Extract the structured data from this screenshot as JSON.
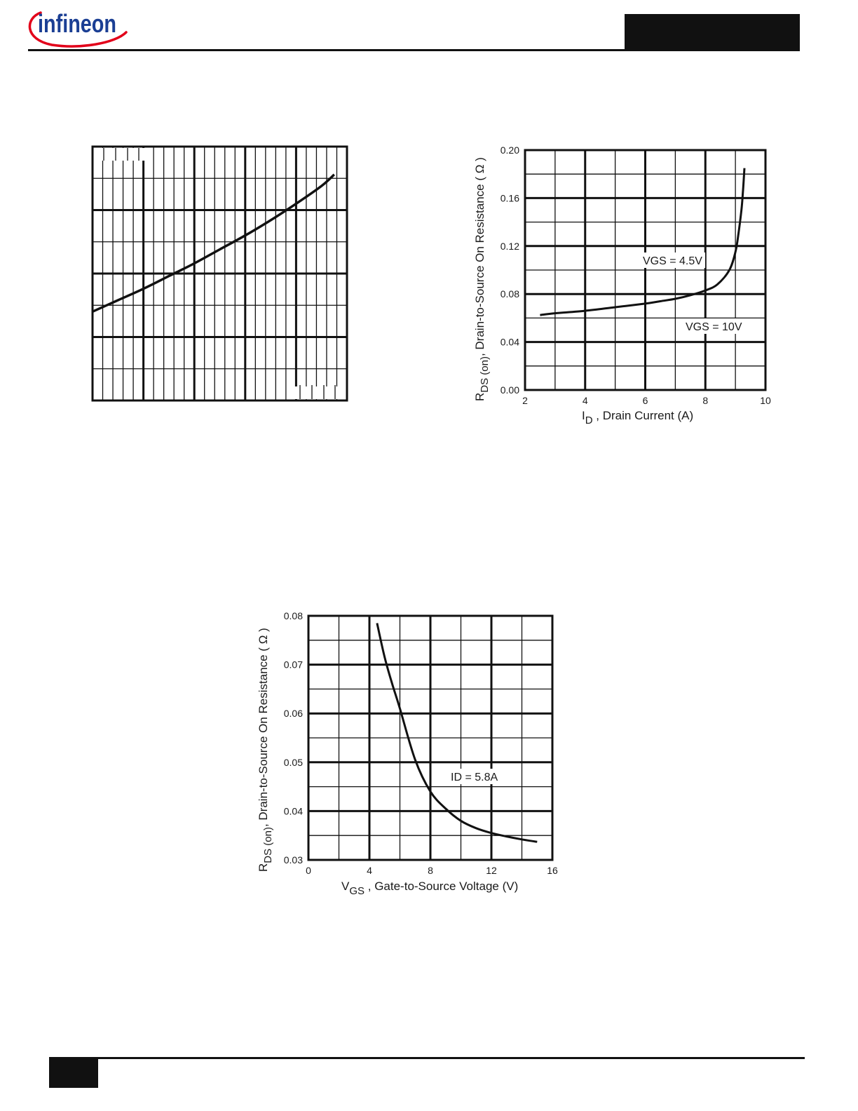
{
  "header": {
    "logo_text": "infineon",
    "brand_color": "#1b3f94",
    "swoosh_color": "#e2001a"
  },
  "chart_data": [
    {
      "type": "line",
      "title": "",
      "xlabel": "",
      "ylabel": "",
      "xlim": [
        0,
        100
      ],
      "ylim": [
        0,
        100
      ],
      "grid": true,
      "series": [
        {
          "x": [
            0,
            10,
            20,
            30,
            40,
            50,
            60,
            70,
            80,
            90,
            95
          ],
          "y": [
            35,
            39.5,
            44,
            49,
            54,
            59.5,
            65,
            71,
            77.5,
            84.5,
            89
          ]
        }
      ]
    },
    {
      "type": "line",
      "title": "",
      "ylabel_main": "R",
      "ylabel_sub": "DS (on)",
      "ylabel_rest": ", Drain-to-Source On Resistance   ( Ω )",
      "xlabel_main": "I",
      "xlabel_sub": "D",
      "xlabel_rest": " , Drain Current (A)",
      "xticks": [
        "2",
        "4",
        "6",
        "8",
        "10"
      ],
      "yticks": [
        "0.00",
        "0.04",
        "0.08",
        "0.12",
        "0.16",
        "0.20"
      ],
      "xlim": [
        2,
        10
      ],
      "ylim": [
        0,
        0.2
      ],
      "grid": true,
      "annotations": [
        "VGS = 4.5V",
        "VGS = 10V"
      ],
      "series": [
        {
          "x": [
            2.5,
            3,
            4,
            5,
            6,
            6.5,
            7,
            7.5,
            8,
            8.4,
            8.8,
            9.0,
            9.1,
            9.2,
            9.25,
            9.3
          ],
          "y": [
            0.0625,
            0.064,
            0.066,
            0.069,
            0.072,
            0.074,
            0.076,
            0.079,
            0.083,
            0.088,
            0.1,
            0.115,
            0.13,
            0.15,
            0.165,
            0.185
          ]
        }
      ]
    },
    {
      "type": "line",
      "title": "",
      "ylabel_main": "R",
      "ylabel_sub": "DS (on)",
      "ylabel_rest": ", Drain-to-Source On Resistance   ( Ω )",
      "xlabel_main": "V",
      "xlabel_sub": "GS",
      "xlabel_rest": " , Gate-to-Source Voltage (V)",
      "xticks": [
        "0",
        "4",
        "8",
        "12",
        "16"
      ],
      "yticks": [
        "0.03",
        "0.04",
        "0.05",
        "0.06",
        "0.07",
        "0.08"
      ],
      "xlim": [
        0,
        16
      ],
      "ylim": [
        0.03,
        0.08
      ],
      "grid": true,
      "annotations": [
        "ID = 5.8A"
      ],
      "series": [
        {
          "x": [
            4.5,
            5,
            5.5,
            6,
            7,
            8,
            9,
            10,
            11,
            12,
            13,
            14,
            15
          ],
          "y": [
            0.0785,
            0.0715,
            0.066,
            0.061,
            0.0505,
            0.044,
            0.0405,
            0.038,
            0.0365,
            0.0355,
            0.0348,
            0.0342,
            0.0337
          ]
        }
      ]
    }
  ]
}
